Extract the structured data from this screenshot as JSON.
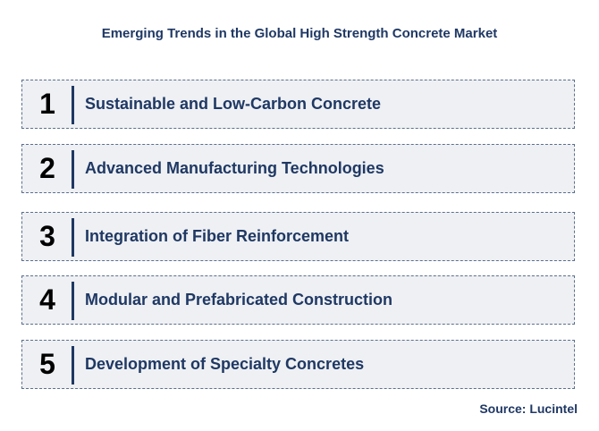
{
  "title": "Emerging Trends in the Global High Strength Concrete Market",
  "trends": [
    {
      "number": "1",
      "label": "Sustainable and Low-Carbon Concrete"
    },
    {
      "number": "2",
      "label": "Advanced Manufacturing Technologies"
    },
    {
      "number": "3",
      "label": "Integration of Fiber Reinforcement"
    },
    {
      "number": "4",
      "label": "Modular and Prefabricated Construction"
    },
    {
      "number": "5",
      "label": "Development of Specialty Concretes"
    }
  ],
  "source": "Source: Lucintel",
  "colors": {
    "text_accent": "#1f3864",
    "box_background": "#eef0f3",
    "box_border": "#5b6f8f"
  }
}
